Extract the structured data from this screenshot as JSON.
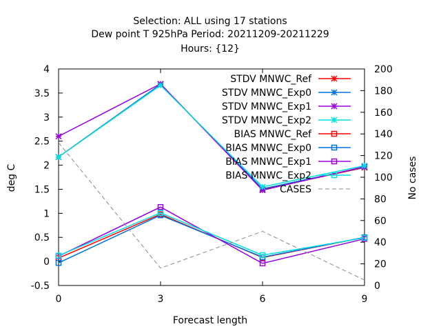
{
  "chart_data": {
    "type": "line",
    "title_lines": [
      "Selection: ALL using    17 stations",
      "Dew point T 925hPa   Period: 20211209-20211229",
      "Hours: {12}"
    ],
    "xlabel": "Forecast length",
    "ylabel": "deg C",
    "y2label": "No cases",
    "x": [
      0,
      3,
      6,
      9
    ],
    "x_ticks": [
      0,
      3,
      6,
      9
    ],
    "xlim": [
      0,
      9
    ],
    "ylim": [
      -0.5,
      4
    ],
    "y_ticks": [
      "-0.5",
      "0",
      "0.5",
      "1",
      "1.5",
      "2",
      "2.5",
      "3",
      "3.5",
      "4"
    ],
    "y2lim": [
      0,
      200
    ],
    "y2_ticks": [
      "0",
      "20",
      "40",
      "60",
      "80",
      "100",
      "120",
      "140",
      "160",
      "180",
      "200"
    ],
    "legend_position": "top-right",
    "grid": false,
    "series": [
      {
        "name": "STDV MNWC_Ref",
        "values": [
          2.17,
          3.68,
          1.5,
          1.95
        ],
        "color": "#ff0000",
        "marker": "x",
        "axis": "y"
      },
      {
        "name": "STDV MNWC_Exp0",
        "values": [
          2.17,
          3.68,
          1.51,
          1.96
        ],
        "color": "#0072dd",
        "marker": "x",
        "axis": "y"
      },
      {
        "name": "STDV MNWC_Exp1",
        "values": [
          2.6,
          3.69,
          1.48,
          1.97
        ],
        "color": "#9900dd",
        "marker": "x",
        "axis": "y"
      },
      {
        "name": "STDV MNWC_Exp2",
        "values": [
          2.17,
          3.66,
          1.55,
          1.99
        ],
        "color": "#00e0e0",
        "marker": "x",
        "axis": "y"
      },
      {
        "name": "BIAS MNWC_Ref",
        "values": [
          0.07,
          0.98,
          0.08,
          0.5
        ],
        "color": "#ff0000",
        "marker": "square",
        "axis": "y"
      },
      {
        "name": "BIAS MNWC_Exp0",
        "values": [
          -0.03,
          0.96,
          0.09,
          0.5
        ],
        "color": "#0072dd",
        "marker": "square",
        "axis": "y"
      },
      {
        "name": "BIAS MNWC_Exp1",
        "values": [
          0.11,
          1.13,
          -0.04,
          0.47
        ],
        "color": "#9900dd",
        "marker": "square",
        "axis": "y"
      },
      {
        "name": "BIAS MNWC_Exp2",
        "values": [
          0.12,
          1.01,
          0.13,
          0.49
        ],
        "color": "#00e0e0",
        "marker": "square",
        "axis": "y"
      },
      {
        "name": "CASES",
        "values": [
          132,
          16,
          50,
          5
        ],
        "color": "#888888",
        "marker": "none",
        "dashed": true,
        "axis": "y2"
      }
    ]
  }
}
